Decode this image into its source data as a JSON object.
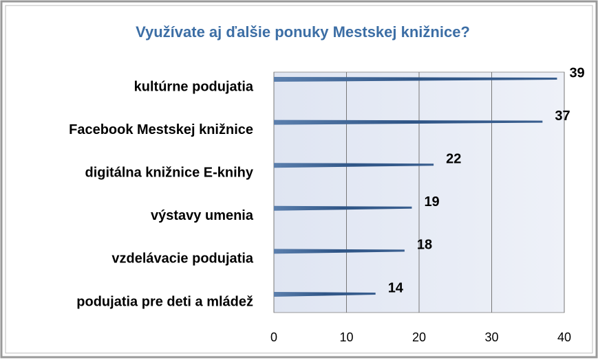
{
  "chart_data": {
    "type": "bar",
    "orientation": "horizontal",
    "title": "Využívate aj ďalšie ponuky Mestskej knižnice?",
    "categories": [
      "kultúrne podujatia",
      "Facebook Mestskej knižnice",
      "digitálna knižnice E-knihy",
      "výstavy umenia",
      "vzdelávacie podujatia",
      "podujatia pre deti a mládež"
    ],
    "values": [
      39,
      37,
      22,
      19,
      18,
      14
    ],
    "color": "#3a5f8f",
    "xlim": [
      0,
      40
    ],
    "xticks": [
      0,
      10,
      20,
      30,
      40
    ],
    "grid": true
  }
}
